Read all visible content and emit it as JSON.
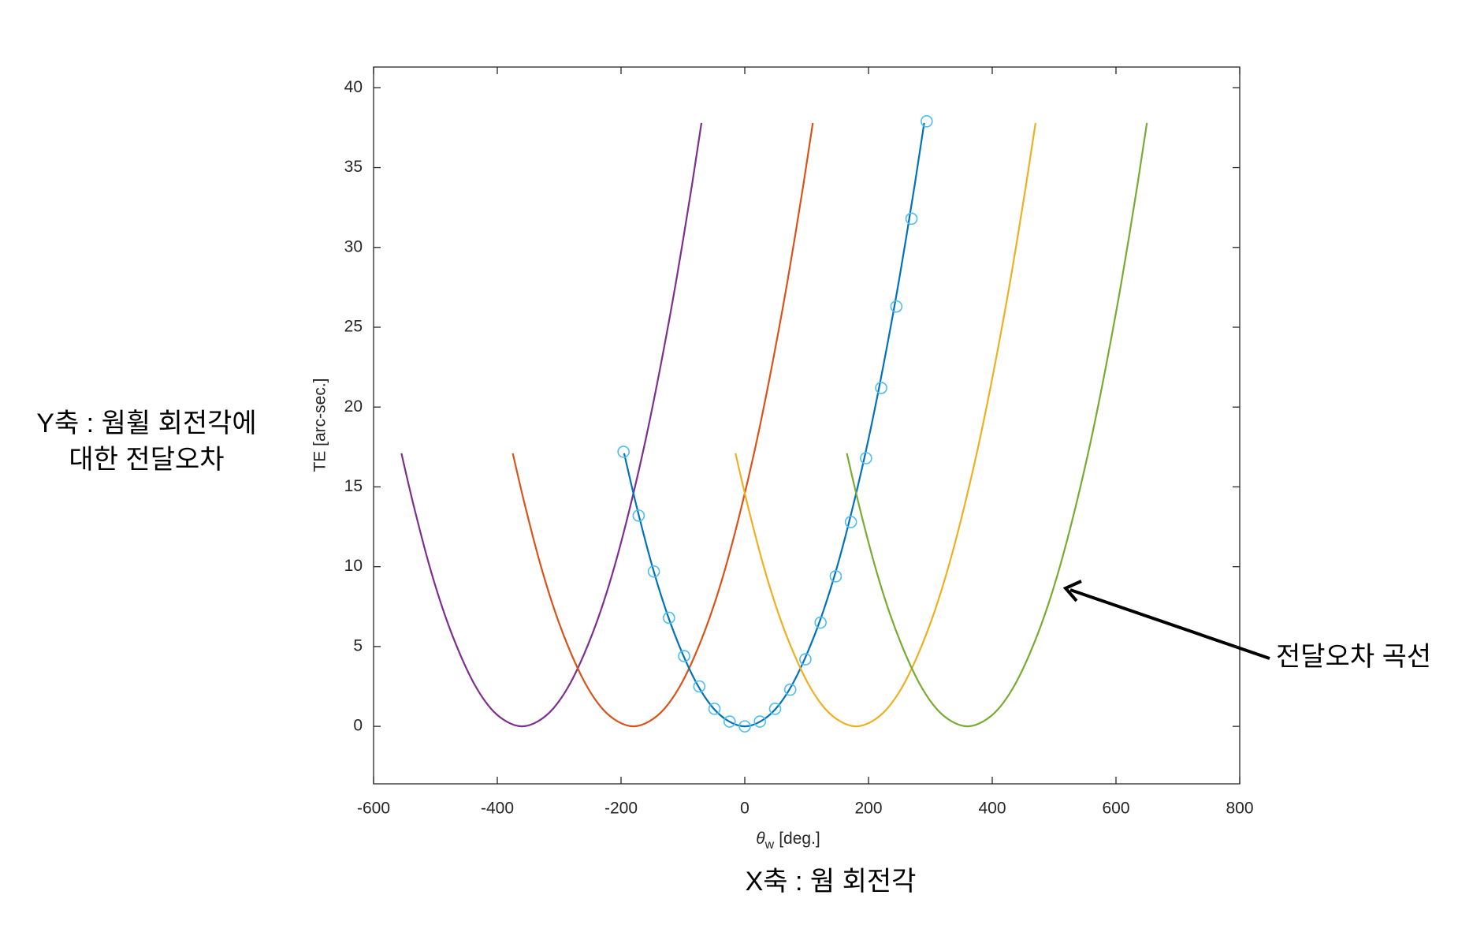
{
  "chart_data": {
    "type": "line",
    "xlabel": {
      "symbol": "θ",
      "subscript": "w",
      "unit": "[deg.]"
    },
    "ylabel": "TE [arc-sec.]",
    "xlim": [
      -600,
      800
    ],
    "xticks": [
      -600,
      -400,
      -200,
      0,
      200,
      400,
      600,
      800
    ],
    "ylim": [
      -3.6,
      41.3
    ],
    "yticks": [
      0,
      5,
      10,
      15,
      20,
      25,
      30,
      35,
      40
    ],
    "grid": false,
    "series": [
      {
        "color": "#7E2F8E",
        "x": [
          -555,
          -535,
          -510,
          -485,
          -460,
          -435,
          -410,
          -385,
          -360,
          -335,
          -310,
          -285,
          -260,
          -235,
          -210,
          -185,
          -160,
          -135,
          -110,
          -85,
          -70
        ],
        "values": [
          17.1,
          13.8,
          10.1,
          7.0,
          4.5,
          2.5,
          1.1,
          0.3,
          0,
          0.3,
          1.1,
          2.5,
          4.5,
          7.0,
          10.1,
          13.8,
          18.0,
          22.8,
          28.1,
          34.0,
          37.8
        ]
      },
      {
        "color": "#D95319",
        "x": [
          -375,
          -355,
          -330,
          -305,
          -280,
          -255,
          -230,
          -205,
          -180,
          -155,
          -130,
          -105,
          -80,
          -55,
          -30,
          -5,
          20,
          45,
          70,
          95,
          110
        ],
        "values": [
          17.1,
          13.8,
          10.1,
          7.0,
          4.5,
          2.5,
          1.1,
          0.3,
          0,
          0.3,
          1.1,
          2.5,
          4.5,
          7.0,
          10.1,
          13.8,
          18.0,
          22.8,
          28.1,
          34.0,
          37.8
        ]
      },
      {
        "color": "#0072BD",
        "x": [
          -195,
          -175,
          -150,
          -125,
          -100,
          -75,
          -50,
          -25,
          0,
          25,
          50,
          75,
          100,
          125,
          150,
          175,
          200,
          225,
          250,
          275,
          290
        ],
        "values": [
          17.1,
          13.8,
          10.1,
          7.0,
          4.5,
          2.5,
          1.1,
          0.3,
          0,
          0.3,
          1.1,
          2.5,
          4.5,
          7.0,
          10.1,
          13.8,
          18.0,
          22.8,
          28.1,
          34.0,
          37.8
        ]
      },
      {
        "color": "#EDB120",
        "x": [
          -15,
          5,
          30,
          55,
          80,
          105,
          130,
          155,
          180,
          205,
          230,
          255,
          280,
          305,
          330,
          355,
          380,
          405,
          430,
          455,
          470
        ],
        "values": [
          17.1,
          13.8,
          10.1,
          7.0,
          4.5,
          2.5,
          1.1,
          0.3,
          0,
          0.3,
          1.1,
          2.5,
          4.5,
          7.0,
          10.1,
          13.8,
          18.0,
          22.8,
          28.1,
          34.0,
          37.8
        ]
      },
      {
        "color": "#77AC30",
        "x": [
          165,
          185,
          210,
          235,
          260,
          285,
          310,
          335,
          360,
          385,
          410,
          435,
          460,
          485,
          510,
          535,
          560,
          585,
          610,
          635,
          650
        ],
        "values": [
          17.1,
          13.8,
          10.1,
          7.0,
          4.5,
          2.5,
          1.1,
          0.3,
          0,
          0.3,
          1.1,
          2.5,
          4.5,
          7.0,
          10.1,
          13.8,
          18.0,
          22.8,
          28.1,
          34.0,
          37.8
        ]
      }
    ],
    "markers": {
      "color": "#4DBEEE",
      "x": [
        -196,
        -171.5,
        -147,
        -122.5,
        -98,
        -73.5,
        -49,
        -24.5,
        0,
        24.5,
        49,
        73.5,
        98,
        122.5,
        147,
        171.5,
        196,
        220.5,
        245,
        269.5,
        294
      ],
      "values": [
        17.2,
        13.2,
        9.7,
        6.8,
        4.4,
        2.5,
        1.1,
        0.3,
        0,
        0.3,
        1.1,
        2.3,
        4.2,
        6.5,
        9.4,
        12.8,
        16.8,
        21.2,
        26.3,
        31.8,
        37.9
      ]
    }
  },
  "annotations": {
    "y_axis_note": [
      "Y축 : 웜휠 회전각에",
      "대한 전달오차"
    ],
    "x_axis_note": "X축 : 웜 회전각",
    "curve_note": "전달오차 곡선"
  }
}
